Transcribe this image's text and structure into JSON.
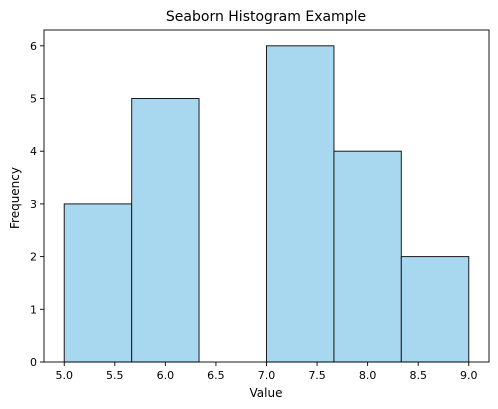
{
  "chart_data": {
    "type": "bar",
    "title": "Seaborn Histogram Example",
    "xlabel": "Value",
    "ylabel": "Frequency",
    "bins": [
      {
        "x0": 5.0,
        "x1": 5.667,
        "count": 3
      },
      {
        "x0": 5.667,
        "x1": 6.333,
        "count": 5
      },
      {
        "x0": 6.333,
        "x1": 7.0,
        "count": 0
      },
      {
        "x0": 7.0,
        "x1": 7.667,
        "count": 6
      },
      {
        "x0": 7.667,
        "x1": 8.333,
        "count": 4
      },
      {
        "x0": 8.333,
        "x1": 9.0,
        "count": 2
      }
    ],
    "xlim": [
      4.8,
      9.2
    ],
    "ylim": [
      0,
      6.3
    ],
    "xticks": [
      "5.0",
      "5.5",
      "6.0",
      "6.5",
      "7.0",
      "7.5",
      "8.0",
      "8.5",
      "9.0"
    ],
    "yticks": [
      "0",
      "1",
      "2",
      "3",
      "4",
      "5",
      "6"
    ],
    "grid": false,
    "colors": {
      "bar_fill": "#a8d8ef",
      "bar_edge": "#1a1a1a",
      "axes": "#000000"
    }
  }
}
